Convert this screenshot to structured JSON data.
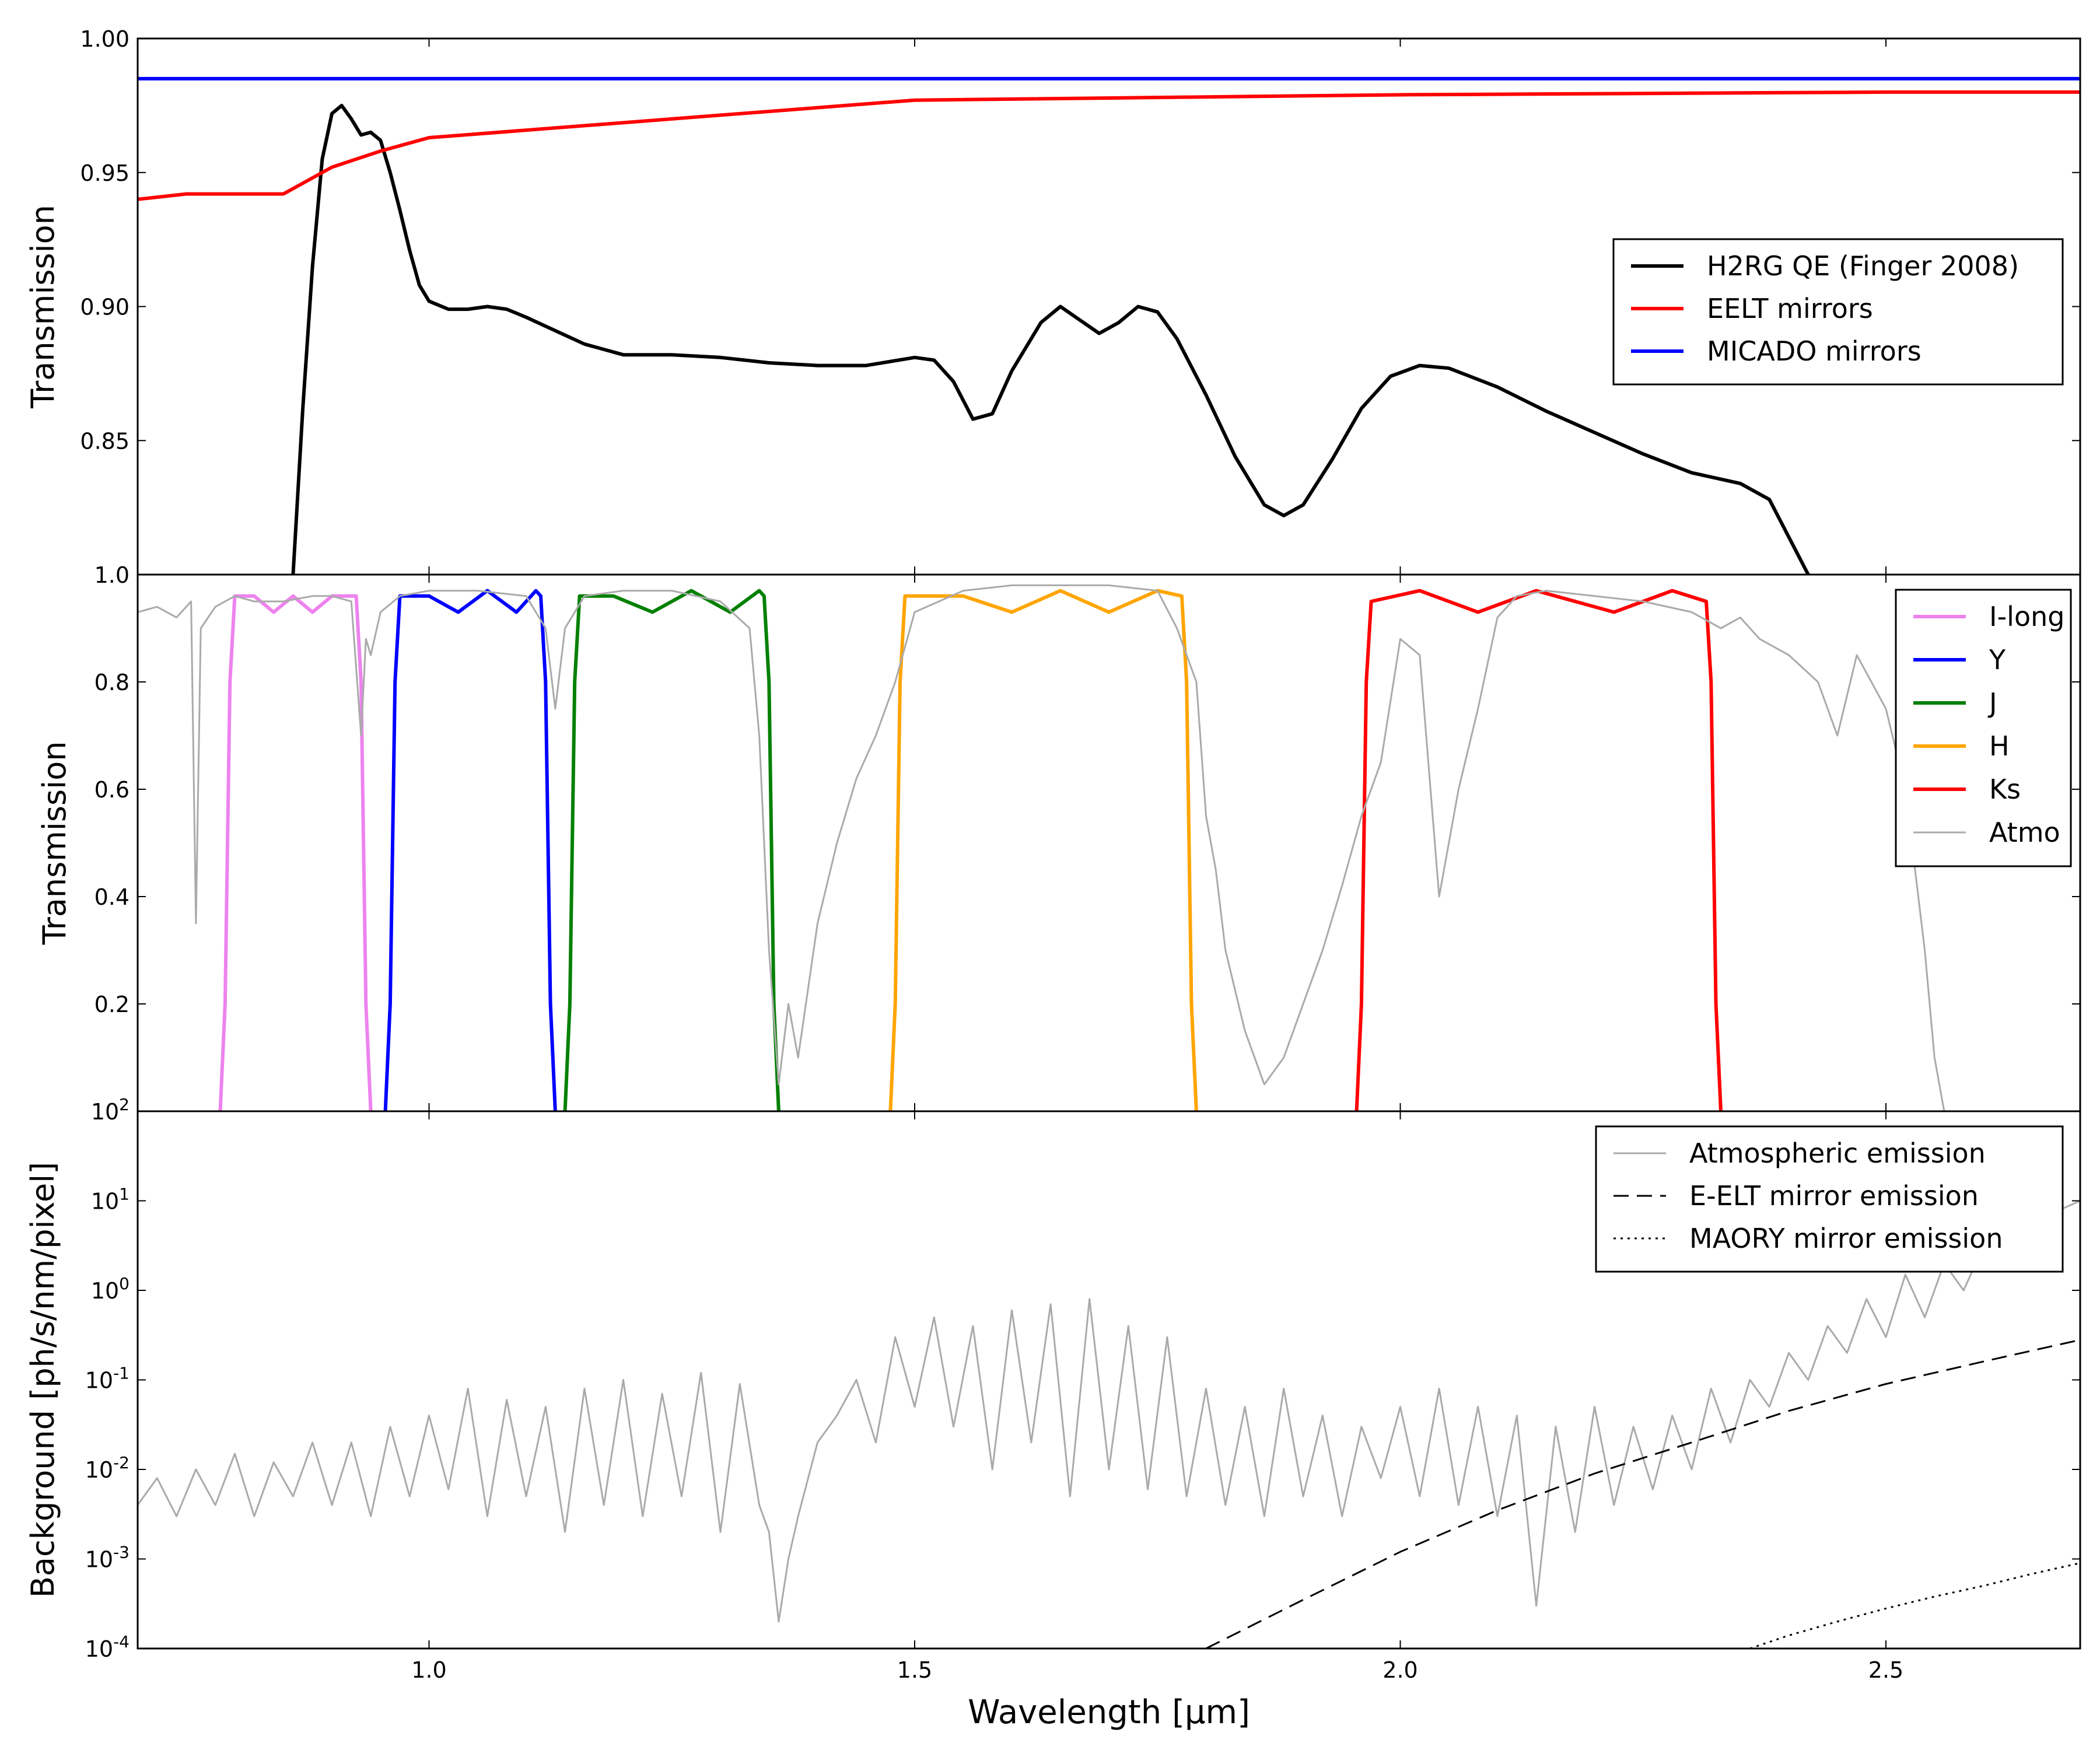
{
  "chart_data": [
    {
      "type": "line",
      "ylabel": "Transmission",
      "xlim": [
        0.7,
        2.7
      ],
      "ylim": [
        0.8,
        1.0
      ],
      "yticks": [
        {
          "v": 0.85,
          "label": "0.85"
        },
        {
          "v": 0.9,
          "label": "0.90"
        },
        {
          "v": 0.95,
          "label": "0.95"
        },
        {
          "v": 1.0,
          "label": "1.00"
        }
      ],
      "legend_position": "center-right",
      "series": [
        {
          "name": "H2RG QE (Finger 2008)",
          "color": "#000000",
          "style": "solid",
          "x": [
            0.86,
            0.87,
            0.88,
            0.89,
            0.9,
            0.91,
            0.92,
            0.93,
            0.94,
            0.95,
            0.96,
            0.97,
            0.98,
            0.99,
            1.0,
            1.02,
            1.04,
            1.06,
            1.08,
            1.1,
            1.13,
            1.16,
            1.2,
            1.25,
            1.3,
            1.35,
            1.4,
            1.45,
            1.5,
            1.52,
            1.54,
            1.56,
            1.58,
            1.6,
            1.63,
            1.65,
            1.67,
            1.69,
            1.71,
            1.73,
            1.75,
            1.77,
            1.8,
            1.83,
            1.86,
            1.88,
            1.9,
            1.93,
            1.96,
            1.99,
            2.02,
            2.05,
            2.1,
            2.15,
            2.2,
            2.25,
            2.3,
            2.35,
            2.38,
            2.42
          ],
          "y": [
            0.8,
            0.862,
            0.915,
            0.955,
            0.972,
            0.975,
            0.97,
            0.964,
            0.965,
            0.962,
            0.95,
            0.936,
            0.921,
            0.908,
            0.902,
            0.899,
            0.899,
            0.9,
            0.899,
            0.896,
            0.891,
            0.886,
            0.882,
            0.882,
            0.881,
            0.879,
            0.878,
            0.878,
            0.881,
            0.88,
            0.872,
            0.858,
            0.86,
            0.876,
            0.894,
            0.9,
            0.895,
            0.89,
            0.894,
            0.9,
            0.898,
            0.888,
            0.867,
            0.844,
            0.826,
            0.822,
            0.826,
            0.843,
            0.862,
            0.874,
            0.878,
            0.877,
            0.87,
            0.861,
            0.853,
            0.845,
            0.838,
            0.834,
            0.828,
            0.8
          ]
        },
        {
          "name": "EELT mirrors",
          "color": "#ff0000",
          "style": "solid",
          "x": [
            0.7,
            0.75,
            0.8,
            0.85,
            0.9,
            0.95,
            1.0,
            1.5,
            2.0,
            2.5,
            2.7
          ],
          "y": [
            0.94,
            0.942,
            0.942,
            0.942,
            0.952,
            0.958,
            0.963,
            0.977,
            0.979,
            0.98,
            0.98
          ]
        },
        {
          "name": "MICADO mirrors",
          "color": "#0000ff",
          "style": "solid",
          "x": [
            0.7,
            2.7
          ],
          "y": [
            0.985,
            0.985
          ]
        }
      ]
    },
    {
      "type": "line",
      "ylabel": "Transmission",
      "xlim": [
        0.7,
        2.7
      ],
      "ylim": [
        0.0,
        1.0
      ],
      "yticks": [
        {
          "v": 0.2,
          "label": "0.2"
        },
        {
          "v": 0.4,
          "label": "0.4"
        },
        {
          "v": 0.6,
          "label": "0.6"
        },
        {
          "v": 0.8,
          "label": "0.8"
        },
        {
          "v": 1.0,
          "label": "1.0"
        }
      ],
      "legend_position": "top-right",
      "series": [
        {
          "name": "I-long",
          "color": "#ee82ee",
          "style": "solid",
          "x": [
            0.785,
            0.79,
            0.795,
            0.8,
            0.82,
            0.84,
            0.86,
            0.88,
            0.9,
            0.92,
            0.925,
            0.93,
            0.935,
            0.94
          ],
          "y": [
            0.0,
            0.2,
            0.8,
            0.96,
            0.96,
            0.93,
            0.96,
            0.93,
            0.96,
            0.96,
            0.96,
            0.8,
            0.2,
            0.0
          ]
        },
        {
          "name": "Y",
          "color": "#0000ff",
          "style": "solid",
          "x": [
            0.955,
            0.96,
            0.965,
            0.97,
            1.0,
            1.03,
            1.06,
            1.09,
            1.11,
            1.115,
            1.12,
            1.125,
            1.13
          ],
          "y": [
            0.0,
            0.2,
            0.8,
            0.96,
            0.96,
            0.93,
            0.97,
            0.93,
            0.97,
            0.96,
            0.8,
            0.2,
            0.0
          ]
        },
        {
          "name": "J",
          "color": "#008000",
          "style": "solid",
          "x": [
            1.14,
            1.145,
            1.15,
            1.155,
            1.19,
            1.23,
            1.27,
            1.31,
            1.34,
            1.345,
            1.35,
            1.355,
            1.36
          ],
          "y": [
            0.0,
            0.2,
            0.8,
            0.96,
            0.96,
            0.93,
            0.97,
            0.93,
            0.97,
            0.96,
            0.8,
            0.2,
            0.0
          ]
        },
        {
          "name": "H",
          "color": "#ffa500",
          "style": "solid",
          "x": [
            1.475,
            1.48,
            1.485,
            1.49,
            1.55,
            1.6,
            1.65,
            1.7,
            1.75,
            1.775,
            1.78,
            1.785,
            1.79
          ],
          "y": [
            0.0,
            0.2,
            0.8,
            0.96,
            0.96,
            0.93,
            0.97,
            0.93,
            0.97,
            0.96,
            0.8,
            0.2,
            0.0
          ]
        },
        {
          "name": "Ks",
          "color": "#ff0000",
          "style": "solid",
          "x": [
            1.955,
            1.96,
            1.965,
            1.97,
            2.02,
            2.08,
            2.14,
            2.22,
            2.28,
            2.315,
            2.32,
            2.325,
            2.33
          ],
          "y": [
            0.0,
            0.2,
            0.8,
            0.95,
            0.97,
            0.93,
            0.97,
            0.93,
            0.97,
            0.95,
            0.8,
            0.2,
            0.0
          ]
        },
        {
          "name": "Atmo",
          "color": "#aaaaaa",
          "style": "solid",
          "x": [
            0.7,
            0.72,
            0.74,
            0.755,
            0.76,
            0.765,
            0.78,
            0.8,
            0.82,
            0.85,
            0.88,
            0.9,
            0.92,
            0.93,
            0.935,
            0.94,
            0.95,
            0.97,
            1.0,
            1.05,
            1.1,
            1.12,
            1.13,
            1.14,
            1.16,
            1.2,
            1.25,
            1.3,
            1.33,
            1.34,
            1.35,
            1.36,
            1.37,
            1.38,
            1.4,
            1.42,
            1.44,
            1.46,
            1.48,
            1.5,
            1.55,
            1.6,
            1.65,
            1.7,
            1.75,
            1.77,
            1.79,
            1.8,
            1.81,
            1.82,
            1.84,
            1.86,
            1.88,
            1.9,
            1.92,
            1.94,
            1.96,
            1.98,
            2.0,
            2.02,
            2.04,
            2.06,
            2.08,
            2.1,
            2.12,
            2.15,
            2.2,
            2.25,
            2.3,
            2.33,
            2.35,
            2.37,
            2.4,
            2.43,
            2.45,
            2.47,
            2.5,
            2.52,
            2.54,
            2.55,
            2.56
          ],
          "y": [
            0.93,
            0.94,
            0.92,
            0.95,
            0.35,
            0.9,
            0.94,
            0.96,
            0.95,
            0.95,
            0.96,
            0.96,
            0.95,
            0.7,
            0.88,
            0.85,
            0.93,
            0.96,
            0.97,
            0.97,
            0.96,
            0.9,
            0.75,
            0.9,
            0.96,
            0.97,
            0.97,
            0.95,
            0.9,
            0.7,
            0.3,
            0.05,
            0.2,
            0.1,
            0.35,
            0.5,
            0.62,
            0.7,
            0.8,
            0.93,
            0.97,
            0.98,
            0.98,
            0.98,
            0.97,
            0.9,
            0.8,
            0.55,
            0.45,
            0.3,
            0.15,
            0.05,
            0.1,
            0.2,
            0.3,
            0.42,
            0.55,
            0.65,
            0.88,
            0.85,
            0.4,
            0.6,
            0.75,
            0.92,
            0.96,
            0.97,
            0.96,
            0.95,
            0.93,
            0.9,
            0.92,
            0.88,
            0.85,
            0.8,
            0.7,
            0.85,
            0.75,
            0.6,
            0.3,
            0.1,
            0.0
          ]
        }
      ]
    },
    {
      "type": "line",
      "ylabel": "Background [ph/s/nm/pixel]",
      "xlabel": "Wavelength [μm]",
      "xlim": [
        0.7,
        2.7
      ],
      "yscale": "log",
      "ylim": [
        0.0001,
        100
      ],
      "yticks": [
        {
          "v": 0.0001,
          "base": "10",
          "exp": "-4"
        },
        {
          "v": 0.001,
          "base": "10",
          "exp": "-3"
        },
        {
          "v": 0.01,
          "base": "10",
          "exp": "-2"
        },
        {
          "v": 0.1,
          "base": "10",
          "exp": "-1"
        },
        {
          "v": 1,
          "base": "10",
          "exp": "0"
        },
        {
          "v": 10,
          "base": "10",
          "exp": "1"
        },
        {
          "v": 100,
          "base": "10",
          "exp": "2"
        }
      ],
      "xticks": [
        {
          "v": 1.0,
          "label": "1.0"
        },
        {
          "v": 1.5,
          "label": "1.5"
        },
        {
          "v": 2.0,
          "label": "2.0"
        },
        {
          "v": 2.5,
          "label": "2.5"
        }
      ],
      "legend_position": "top-right",
      "series": [
        {
          "name": "Atmospheric emission",
          "color": "#aaaaaa",
          "style": "solid",
          "x": [
            0.7,
            0.72,
            0.74,
            0.76,
            0.78,
            0.8,
            0.82,
            0.84,
            0.86,
            0.88,
            0.9,
            0.92,
            0.94,
            0.96,
            0.98,
            1.0,
            1.02,
            1.04,
            1.06,
            1.08,
            1.1,
            1.12,
            1.14,
            1.16,
            1.18,
            1.2,
            1.22,
            1.24,
            1.26,
            1.28,
            1.3,
            1.32,
            1.34,
            1.35,
            1.36,
            1.37,
            1.38,
            1.4,
            1.42,
            1.44,
            1.46,
            1.48,
            1.5,
            1.52,
            1.54,
            1.56,
            1.58,
            1.6,
            1.62,
            1.64,
            1.66,
            1.68,
            1.7,
            1.72,
            1.74,
            1.76,
            1.78,
            1.8,
            1.82,
            1.84,
            1.86,
            1.88,
            1.9,
            1.92,
            1.94,
            1.96,
            1.98,
            2.0,
            2.02,
            2.04,
            2.06,
            2.08,
            2.1,
            2.12,
            2.14,
            2.16,
            2.18,
            2.2,
            2.22,
            2.24,
            2.26,
            2.28,
            2.3,
            2.32,
            2.34,
            2.36,
            2.38,
            2.4,
            2.42,
            2.44,
            2.46,
            2.48,
            2.5,
            2.52,
            2.54,
            2.56,
            2.58,
            2.6,
            2.62,
            2.64,
            2.66,
            2.68,
            2.7
          ],
          "y": [
            0.004,
            0.008,
            0.003,
            0.01,
            0.004,
            0.015,
            0.003,
            0.012,
            0.005,
            0.02,
            0.004,
            0.02,
            0.003,
            0.03,
            0.005,
            0.04,
            0.006,
            0.08,
            0.003,
            0.06,
            0.005,
            0.05,
            0.002,
            0.08,
            0.004,
            0.1,
            0.003,
            0.07,
            0.005,
            0.12,
            0.002,
            0.09,
            0.004,
            0.002,
            0.0002,
            0.001,
            0.003,
            0.02,
            0.04,
            0.1,
            0.02,
            0.3,
            0.05,
            0.5,
            0.03,
            0.4,
            0.01,
            0.6,
            0.02,
            0.7,
            0.005,
            0.8,
            0.01,
            0.4,
            0.006,
            0.3,
            0.005,
            0.08,
            0.004,
            0.05,
            0.003,
            0.08,
            0.005,
            0.04,
            0.003,
            0.03,
            0.008,
            0.05,
            0.005,
            0.08,
            0.004,
            0.05,
            0.003,
            0.04,
            0.0003,
            0.03,
            0.002,
            0.05,
            0.004,
            0.03,
            0.006,
            0.04,
            0.01,
            0.08,
            0.02,
            0.1,
            0.05,
            0.2,
            0.1,
            0.4,
            0.2,
            0.8,
            0.3,
            1.5,
            0.5,
            2,
            1,
            3,
            2,
            5,
            3,
            8,
            10
          ]
        },
        {
          "name": "E-ELT mirror emission",
          "color": "#000000",
          "style": "dashed",
          "x": [
            1.8,
            1.9,
            2.0,
            2.1,
            2.2,
            2.3,
            2.4,
            2.5,
            2.6,
            2.7
          ],
          "y": [
            0.0001,
            0.00035,
            0.0012,
            0.0035,
            0.009,
            0.02,
            0.045,
            0.09,
            0.16,
            0.28
          ]
        },
        {
          "name": "MAORY mirror emission",
          "color": "#000000",
          "style": "dotted",
          "x": [
            2.36,
            2.4,
            2.45,
            2.5,
            2.55,
            2.6,
            2.65,
            2.7
          ],
          "y": [
            0.0001,
            0.00014,
            0.0002,
            0.00028,
            0.00038,
            0.0005,
            0.00068,
            0.0009
          ]
        }
      ]
    }
  ]
}
